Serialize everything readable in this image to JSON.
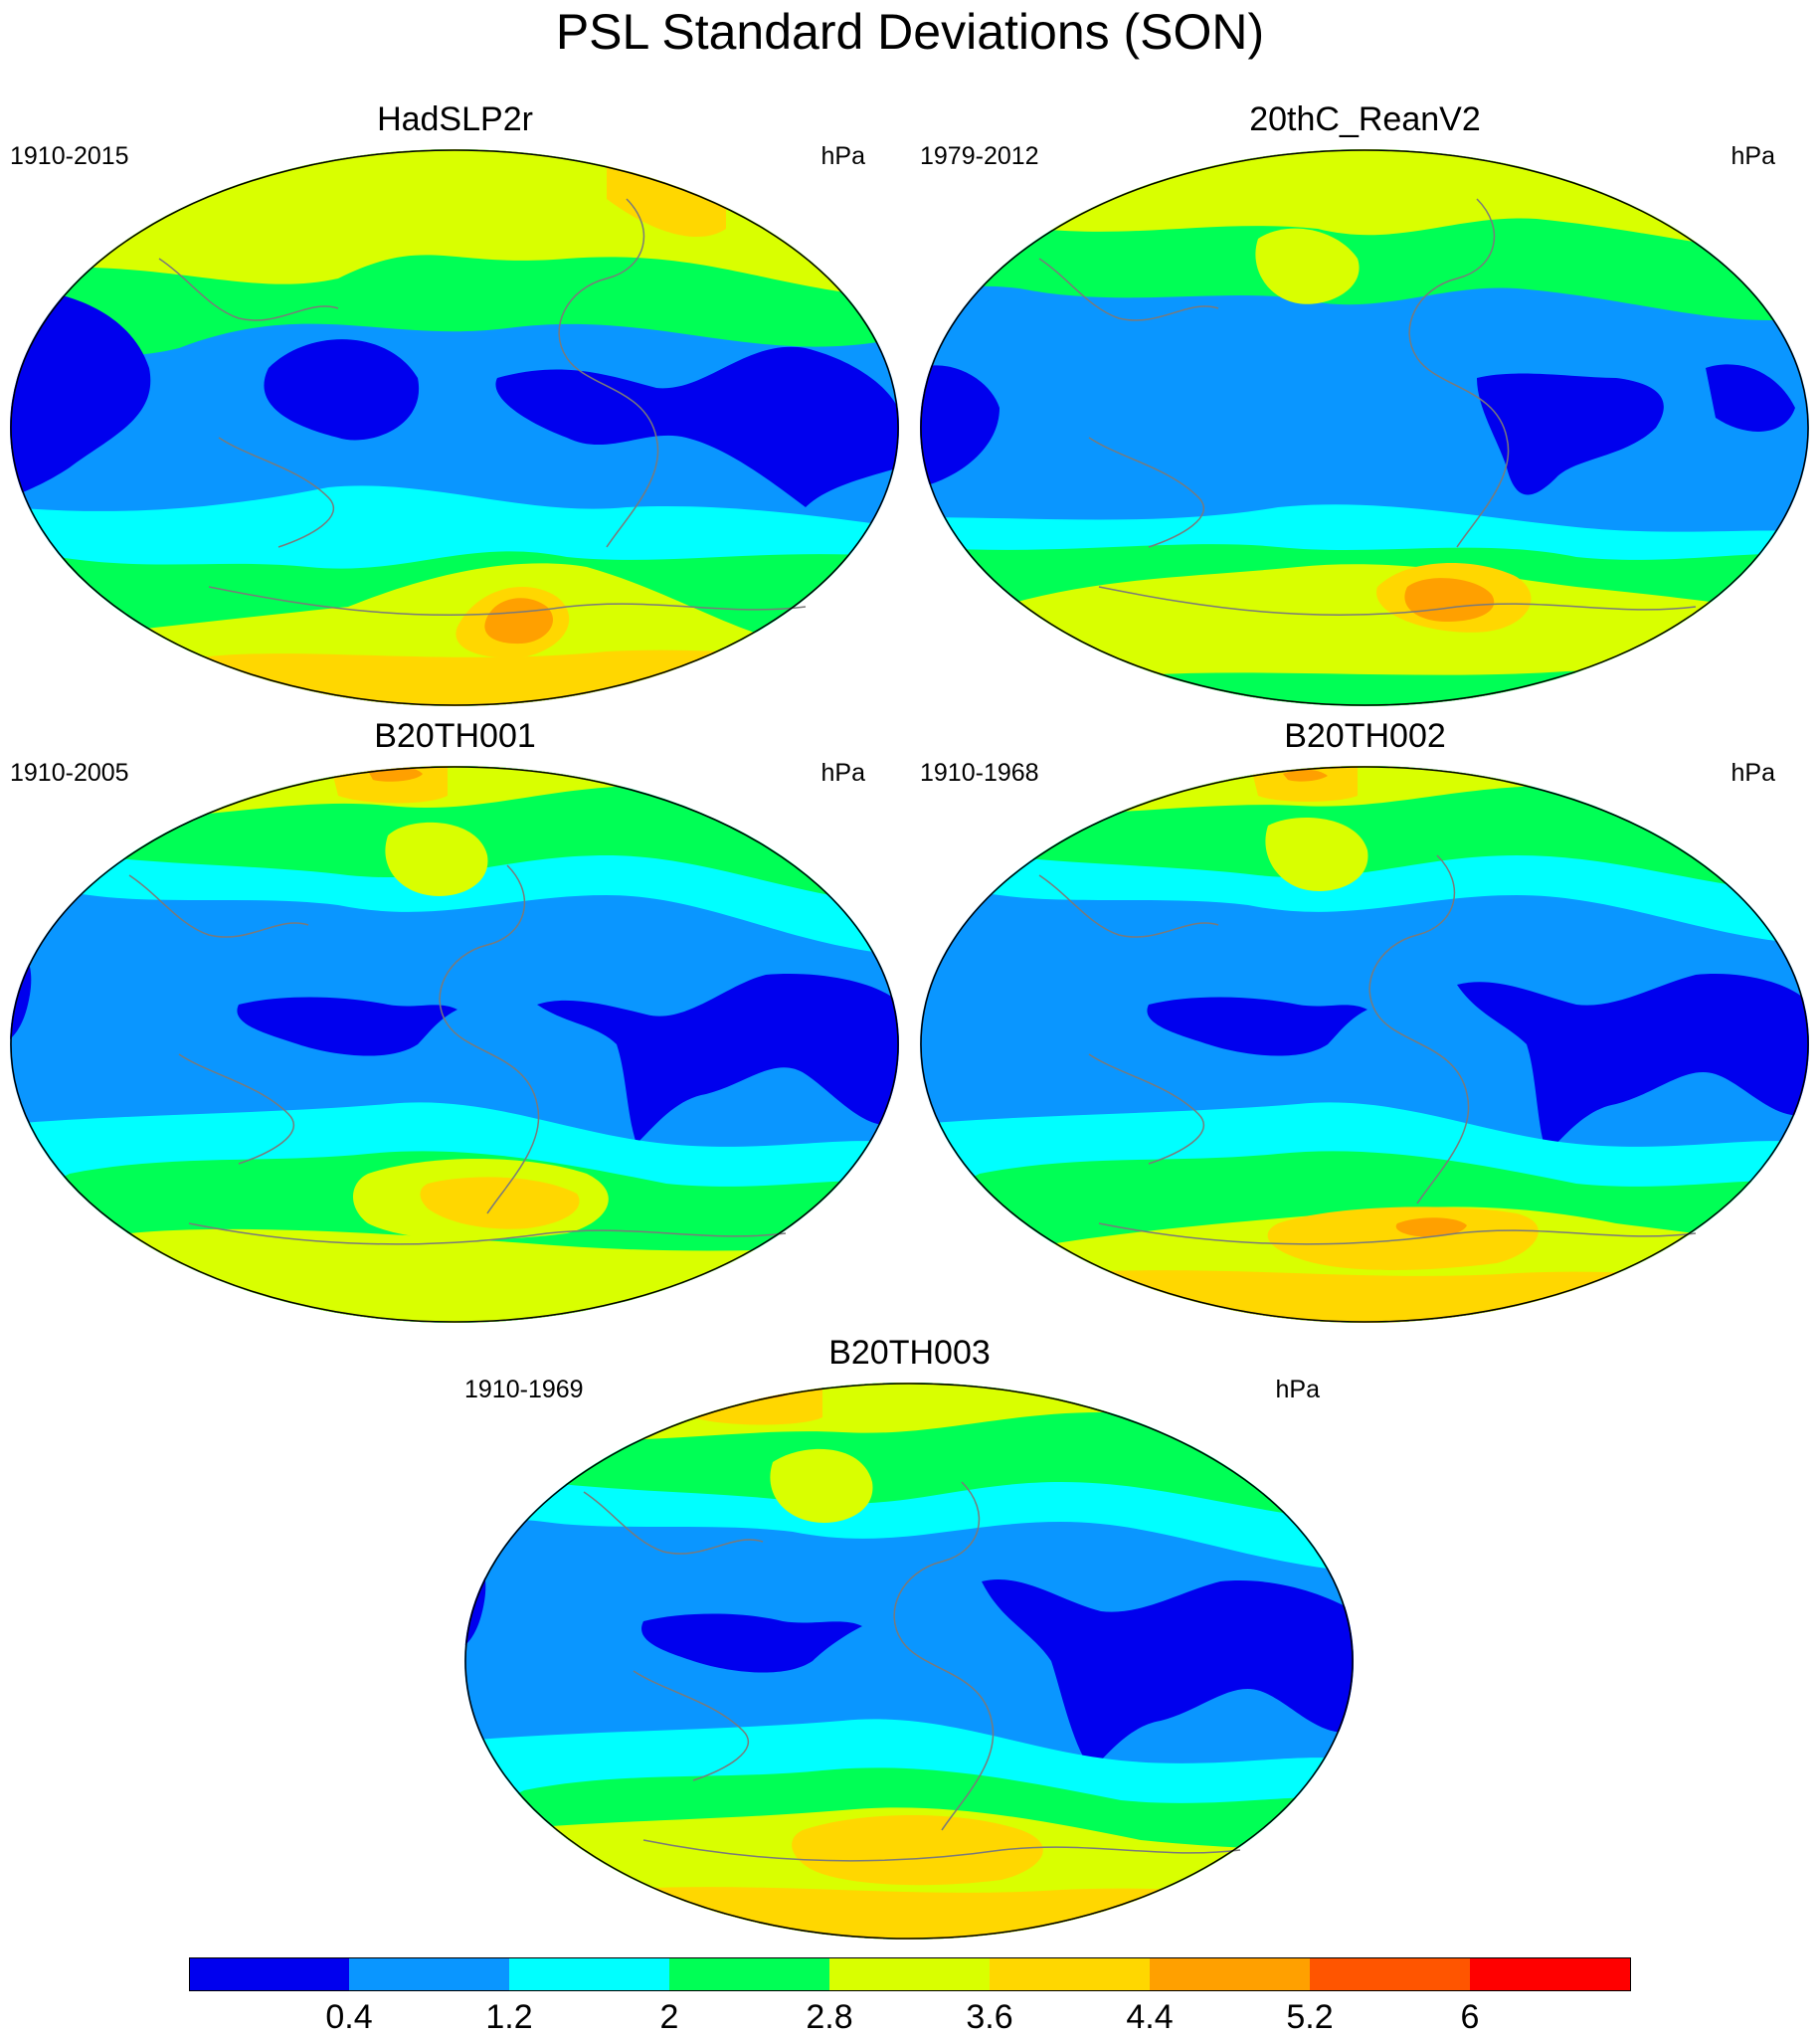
{
  "main_title": "PSL Standard Deviations (SON)",
  "colors": {
    "levels": [
      "#0000ee",
      "#0a96ff",
      "#00ffff",
      "#00ff55",
      "#d9ff00",
      "#ffd700",
      "#ffa000",
      "#ff5500",
      "#ff0000"
    ],
    "coastline": "#7a7a7a",
    "map_outline": "#000000"
  },
  "panels": [
    {
      "title": "HadSLP2r",
      "period": "1910-2015",
      "unit": "hPa"
    },
    {
      "title": "20thC_ReanV2",
      "period": "1979-2012",
      "unit": "hPa"
    },
    {
      "title": "B20TH001",
      "period": "1910-2005",
      "unit": "hPa"
    },
    {
      "title": "B20TH002",
      "period": "1910-1968",
      "unit": "hPa"
    },
    {
      "title": "B20TH003",
      "period": "1910-1969",
      "unit": "hPa"
    }
  ],
  "colorbar": {
    "labels": [
      "0.4",
      "1.2",
      "2",
      "2.8",
      "3.6",
      "4.4",
      "5.2",
      "6"
    ]
  }
}
